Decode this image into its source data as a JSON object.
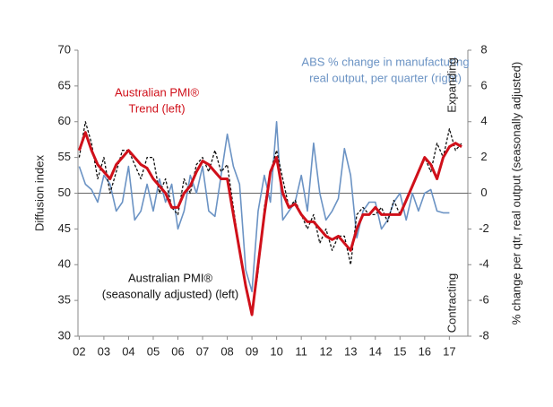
{
  "chart_data": {
    "type": "line",
    "ylabel": "Diffusion index",
    "y2label": "% change per qtr, real output (seasonally adjusted)",
    "xlim": [
      2001.95,
      2017.75
    ],
    "xticks": [
      {
        "value": 2002,
        "label": "02"
      },
      {
        "value": 2003,
        "label": "03"
      },
      {
        "value": 2004,
        "label": "04"
      },
      {
        "value": 2005,
        "label": "05"
      },
      {
        "value": 2006,
        "label": "06"
      },
      {
        "value": 2007,
        "label": "07"
      },
      {
        "value": 2008,
        "label": "08"
      },
      {
        "value": 2009,
        "label": "09"
      },
      {
        "value": 2010,
        "label": "10"
      },
      {
        "value": 2011,
        "label": "11"
      },
      {
        "value": 2012,
        "label": "12"
      },
      {
        "value": 2013,
        "label": "13"
      },
      {
        "value": 2014,
        "label": "14"
      },
      {
        "value": 2015,
        "label": "15"
      },
      {
        "value": 2016,
        "label": "16"
      },
      {
        "value": 2017,
        "label": "17"
      }
    ],
    "ylim": [
      30,
      70
    ],
    "yticks": [
      30,
      35,
      40,
      45,
      50,
      55,
      60,
      65,
      70
    ],
    "y2lim": [
      -8,
      8
    ],
    "y2ticks": [
      -8,
      -6,
      -4,
      -2,
      0,
      2,
      4,
      6,
      8
    ],
    "x": [
      2002.0,
      2002.25,
      2002.5,
      2002.75,
      2003.0,
      2003.25,
      2003.5,
      2003.75,
      2004.0,
      2004.25,
      2004.5,
      2004.75,
      2005.0,
      2005.25,
      2005.5,
      2005.75,
      2006.0,
      2006.25,
      2006.5,
      2006.75,
      2007.0,
      2007.25,
      2007.5,
      2007.75,
      2008.0,
      2008.25,
      2008.5,
      2008.75,
      2009.0,
      2009.25,
      2009.5,
      2009.75,
      2010.0,
      2010.25,
      2010.5,
      2010.75,
      2011.0,
      2011.25,
      2011.5,
      2011.75,
      2012.0,
      2012.25,
      2012.5,
      2012.75,
      2013.0,
      2013.25,
      2013.5,
      2013.75,
      2014.0,
      2014.25,
      2014.5,
      2014.75,
      2015.0,
      2015.25,
      2015.5,
      2015.75,
      2016.0,
      2016.25,
      2016.5,
      2016.75,
      2017.0,
      2017.25,
      2017.5
    ],
    "series": [
      {
        "name": "ABS % change in manufacturing real output, per quarter (right)",
        "color": "#6b93c4",
        "axis": "y2",
        "style": "solid",
        "values": [
          1.5,
          0.5,
          0.2,
          -0.5,
          1,
          0.5,
          -1,
          -0.5,
          1.5,
          -1.5,
          -1,
          0.5,
          -1,
          0.8,
          -0.5,
          0.5,
          -2,
          -1,
          1,
          0,
          1.5,
          -1,
          -1.3,
          1,
          3.3,
          1.5,
          0.5,
          -4.3,
          -5.5,
          -1,
          1,
          -0.5,
          4,
          -1.5,
          -1,
          -0.5,
          1,
          -1,
          2.8,
          0,
          -1.5,
          -1,
          -0.3,
          2.5,
          1,
          -2.5,
          -1,
          -0.5,
          -0.5,
          -2,
          -1.5,
          -0.5,
          0,
          -1.5,
          0,
          -1,
          0,
          0.2,
          -1,
          -1.1,
          -1.1,
          null,
          null
        ]
      },
      {
        "name": "Australian PMI® (seasonally adjusted) (left)",
        "color": "#111111",
        "axis": "y",
        "style": "dashed",
        "values": [
          55,
          60,
          57,
          52,
          55,
          50,
          53,
          56,
          56,
          54,
          52,
          55,
          55,
          50,
          52,
          48,
          47,
          52,
          50,
          54,
          55,
          53,
          56,
          53,
          54,
          48,
          42,
          37,
          33,
          39,
          48,
          53,
          56,
          52,
          48,
          49,
          47,
          45,
          47,
          43,
          45,
          42,
          44,
          44,
          40,
          47,
          48,
          47,
          47,
          48,
          46,
          49,
          47,
          49,
          51,
          53,
          55,
          53,
          57,
          55,
          59,
          56,
          57
        ]
      },
      {
        "name": "Australian PMI® Trend (left)",
        "color": "#d0101a",
        "axis": "y",
        "style": "thick",
        "values": [
          56,
          58.5,
          56,
          54,
          53,
          52,
          54,
          55,
          56,
          55,
          54,
          53.5,
          52,
          51,
          50,
          48,
          48,
          50,
          51,
          53,
          54.5,
          54,
          53,
          52,
          52,
          47,
          42,
          37,
          33,
          40,
          47,
          53,
          55,
          50,
          48,
          48.5,
          47,
          46,
          46,
          45,
          44,
          43.5,
          44,
          43,
          42,
          45,
          47,
          47,
          48,
          47,
          47,
          47,
          47,
          49,
          51,
          53,
          55,
          54,
          52,
          55,
          56.5,
          57,
          56.5
        ]
      }
    ],
    "annotations": [
      {
        "lines": [
          "ABS % change in manufacturing",
          "real output, per quarter (right)"
        ],
        "color": "#6b93c4"
      },
      {
        "lines": [
          "Australian PMI®",
          "Trend (left)"
        ],
        "color": "#d0101a"
      },
      {
        "lines": [
          "Australian PMI®",
          "(seasonally adjusted) (left)"
        ],
        "color": "#111111"
      },
      {
        "lines": [
          "Expanding"
        ],
        "color": "#222222"
      },
      {
        "lines": [
          "Contracting"
        ],
        "color": "#222222"
      }
    ]
  }
}
